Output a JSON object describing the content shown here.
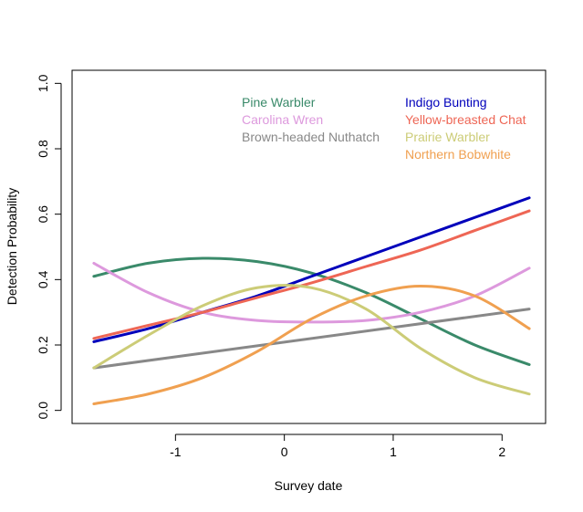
{
  "chart_data": {
    "type": "line",
    "title": "",
    "xlabel": "Survey date",
    "ylabel": "Detection Probability",
    "xlim": [
      -1.95,
      2.4
    ],
    "ylim": [
      -0.04,
      1.04
    ],
    "xticks": [
      -1,
      0,
      1,
      2
    ],
    "xtick_labels": [
      "-1",
      "0",
      "1",
      "2"
    ],
    "yticks": [
      0.0,
      0.2,
      0.4,
      0.6,
      0.8,
      1.0
    ],
    "ytick_labels": [
      "0.0",
      "0.2",
      "0.4",
      "0.6",
      "0.8",
      "1.0"
    ],
    "grid": false,
    "legend": "top",
    "series": [
      {
        "name": "Pine Warbler",
        "color": "#3a8a6a",
        "x": [
          -1.75,
          -1.25,
          -0.75,
          -0.25,
          0.25,
          0.75,
          1.25,
          1.75,
          2.25
        ],
        "y": [
          0.41,
          0.45,
          0.465,
          0.455,
          0.42,
          0.36,
          0.28,
          0.2,
          0.14
        ]
      },
      {
        "name": "Carolina Wren",
        "color": "#dd99dd",
        "x": [
          -1.75,
          -1.25,
          -0.75,
          -0.25,
          0.25,
          0.75,
          1.25,
          1.75,
          2.25
        ],
        "y": [
          0.45,
          0.36,
          0.3,
          0.275,
          0.27,
          0.275,
          0.3,
          0.35,
          0.435
        ]
      },
      {
        "name": "Brown-headed Nuthatch",
        "color": "#888888",
        "x": [
          -1.75,
          2.25
        ],
        "y": [
          0.13,
          0.31
        ]
      },
      {
        "name": "Indigo Bunting",
        "color": "#0000bb",
        "x": [
          -1.75,
          -1.25,
          -0.75,
          -0.25,
          0.25,
          0.75,
          1.25,
          1.75,
          2.25
        ],
        "y": [
          0.21,
          0.25,
          0.3,
          0.35,
          0.41,
          0.47,
          0.53,
          0.59,
          0.65
        ]
      },
      {
        "name": "Yellow-breasted Chat",
        "color": "#ee6655",
        "x": [
          -1.75,
          -1.25,
          -0.75,
          -0.25,
          0.25,
          0.75,
          1.25,
          1.75,
          2.25
        ],
        "y": [
          0.22,
          0.26,
          0.3,
          0.345,
          0.39,
          0.44,
          0.49,
          0.55,
          0.61
        ]
      },
      {
        "name": "Prairie Warbler",
        "color": "#cccc77",
        "x": [
          -1.75,
          -1.25,
          -0.75,
          -0.25,
          0.25,
          0.75,
          1.25,
          1.75,
          2.25
        ],
        "y": [
          0.13,
          0.23,
          0.32,
          0.375,
          0.375,
          0.31,
          0.19,
          0.1,
          0.05
        ]
      },
      {
        "name": "Northern Bobwhite",
        "color": "#f0a050",
        "x": [
          -1.75,
          -1.25,
          -0.75,
          -0.25,
          0.25,
          0.75,
          1.25,
          1.75,
          2.25
        ],
        "y": [
          0.02,
          0.05,
          0.1,
          0.18,
          0.28,
          0.35,
          0.38,
          0.35,
          0.25
        ]
      }
    ]
  }
}
